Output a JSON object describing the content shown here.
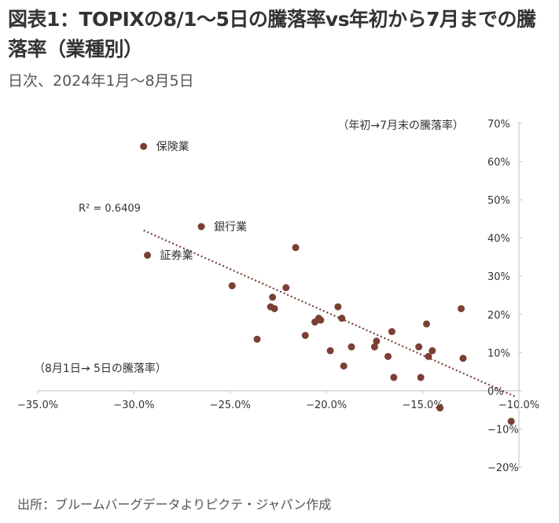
{
  "title": "図表1：TOPIXの8/1～5日の騰落率vs年初から7月までの騰落率（業種別）",
  "subtitle": "日次、2024年1月～8月5日",
  "source": "出所：ブルームバーグデータよりピクテ・ジャパン作成",
  "chart_data": {
    "type": "scatter",
    "xlabel": "（8月1日→ 5日の騰落率）",
    "ylabel": "（年初→7月末の騰落率）",
    "xlim": [
      -35,
      -10
    ],
    "ylim": [
      -20,
      70
    ],
    "x_ticks": [
      -35,
      -30,
      -25,
      -20,
      -15,
      -10
    ],
    "x_tick_labels": [
      "−35.0%",
      "−30.0%",
      "−25.0%",
      "−20.0%",
      "−15.0%",
      "−10.0%"
    ],
    "y_ticks": [
      70,
      60,
      50,
      40,
      30,
      20,
      10,
      0,
      -10,
      -20
    ],
    "y_tick_labels": [
      "70%",
      "60%",
      "50%",
      "40%",
      "30%",
      "20%",
      "10%",
      "0%",
      "−10%",
      "−20%"
    ],
    "r_squared_label": "R² = 0.6409",
    "trendline": {
      "x": [
        -29.5,
        -10.2
      ],
      "y": [
        42,
        -1.5
      ]
    },
    "marker_color": "#7b3f35",
    "trend_color": "#7b3f35",
    "points": [
      {
        "x": -29.5,
        "y": 64.0,
        "label": "保険業"
      },
      {
        "x": -26.5,
        "y": 43.0,
        "label": "銀行業"
      },
      {
        "x": -29.3,
        "y": 35.5,
        "label": "証券業"
      },
      {
        "x": -21.6,
        "y": 37.5,
        "label": ""
      },
      {
        "x": -24.9,
        "y": 27.5,
        "label": ""
      },
      {
        "x": -22.1,
        "y": 27.0,
        "label": ""
      },
      {
        "x": -22.8,
        "y": 24.5,
        "label": ""
      },
      {
        "x": -22.9,
        "y": 22.0,
        "label": ""
      },
      {
        "x": -22.7,
        "y": 21.5,
        "label": ""
      },
      {
        "x": -19.4,
        "y": 22.0,
        "label": ""
      },
      {
        "x": -20.4,
        "y": 19.0,
        "label": ""
      },
      {
        "x": -20.3,
        "y": 18.5,
        "label": ""
      },
      {
        "x": -20.6,
        "y": 18.0,
        "label": ""
      },
      {
        "x": -19.2,
        "y": 19.0,
        "label": ""
      },
      {
        "x": -23.6,
        "y": 13.5,
        "label": ""
      },
      {
        "x": -21.1,
        "y": 14.5,
        "label": ""
      },
      {
        "x": -19.8,
        "y": 10.5,
        "label": ""
      },
      {
        "x": -18.7,
        "y": 11.5,
        "label": ""
      },
      {
        "x": -17.4,
        "y": 13.0,
        "label": ""
      },
      {
        "x": -17.5,
        "y": 11.5,
        "label": ""
      },
      {
        "x": -16.6,
        "y": 15.5,
        "label": ""
      },
      {
        "x": -16.8,
        "y": 9.0,
        "label": ""
      },
      {
        "x": -19.1,
        "y": 6.5,
        "label": ""
      },
      {
        "x": -16.5,
        "y": 3.5,
        "label": ""
      },
      {
        "x": -15.2,
        "y": 11.5,
        "label": ""
      },
      {
        "x": -14.8,
        "y": 17.5,
        "label": ""
      },
      {
        "x": -14.7,
        "y": 9.0,
        "label": ""
      },
      {
        "x": -14.5,
        "y": 10.5,
        "label": ""
      },
      {
        "x": -15.1,
        "y": 3.5,
        "label": ""
      },
      {
        "x": -13.0,
        "y": 21.5,
        "label": ""
      },
      {
        "x": -12.9,
        "y": 8.5,
        "label": ""
      },
      {
        "x": -14.1,
        "y": -4.5,
        "label": ""
      },
      {
        "x": -10.4,
        "y": -8.0,
        "label": ""
      }
    ]
  }
}
